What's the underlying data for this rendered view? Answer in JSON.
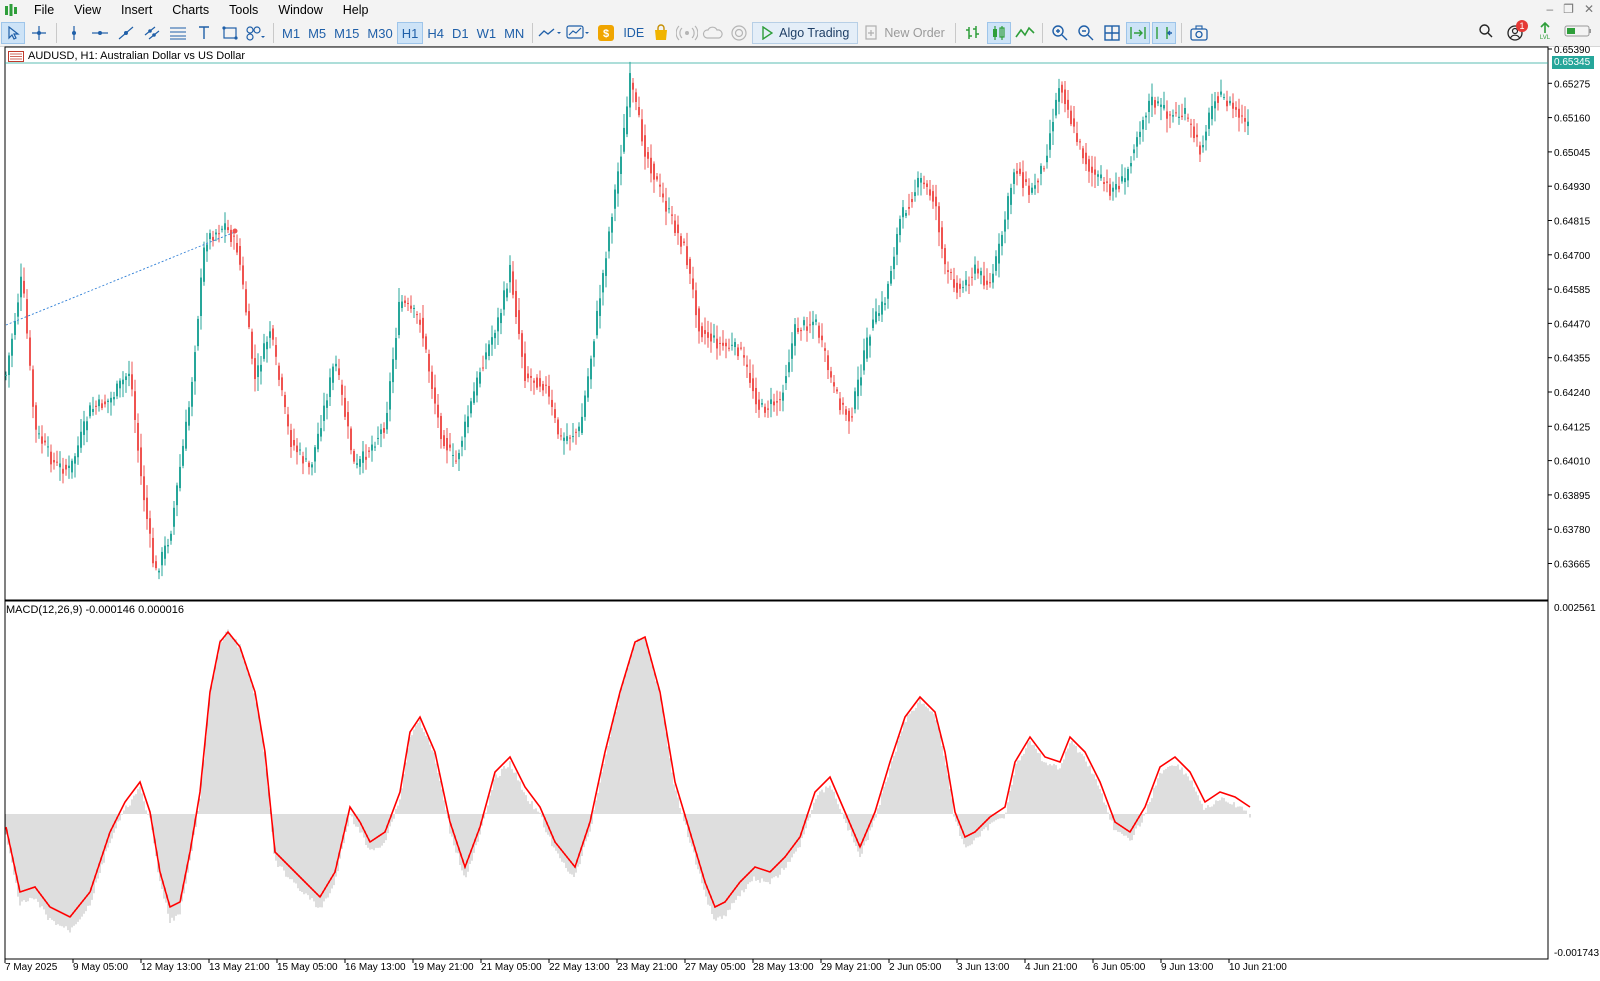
{
  "menu": {
    "items": [
      "File",
      "View",
      "Insert",
      "Charts",
      "Tools",
      "Window",
      "Help"
    ]
  },
  "toolbar": {
    "tool_icons": [
      "cursor-icon",
      "crosshair-icon",
      "vertical-line-icon",
      "horizontal-line-icon",
      "trendline-icon",
      "channel-icon",
      "fibonacci-icon",
      "text-icon",
      "rectangle-icon",
      "shapes-icon"
    ],
    "timeframes": [
      "M1",
      "M5",
      "M15",
      "M30",
      "H1",
      "H4",
      "D1",
      "W1",
      "MN"
    ],
    "active_timeframe": "H1",
    "ide_label": "IDE",
    "algo_trading_label": "Algo Trading",
    "new_order_label": "New Order",
    "notification_count": "1"
  },
  "chart": {
    "symbol_label": "AUDUSD, H1:  Australian Dollar vs US Dollar",
    "current_price": "0.65345",
    "price_axis": [
      "0.65390",
      "0.65275",
      "0.65160",
      "0.65045",
      "0.64930",
      "0.64815",
      "0.64700",
      "0.64585",
      "0.64470",
      "0.64355",
      "0.64240",
      "0.64125",
      "0.64010",
      "0.63895",
      "0.63780",
      "0.63665"
    ],
    "macd_label": "MACD(12,26,9) -0.000146 0.000016",
    "macd_axis_top": "0.002561",
    "macd_axis_bottom": "-0.001743",
    "time_axis": [
      "7 May 2025",
      "9 May 05:00",
      "12 May 13:00",
      "13 May 21:00",
      "15 May 05:00",
      "16 May 13:00",
      "19 May 21:00",
      "21 May 05:00",
      "22 May 13:00",
      "23 May 21:00",
      "27 May 05:00",
      "28 May 13:00",
      "29 May 21:00",
      "2 Jun 05:00",
      "3 Jun 13:00",
      "4 Jun 21:00",
      "6 Jun 05:00",
      "9 Jun 13:00",
      "10 Jun 21:00"
    ],
    "colors": {
      "bull": "#26a69a",
      "bear": "#ef5350",
      "macd_hist": "#bdbdbd",
      "signal": "#ff0000",
      "price_tag": "#26a69a"
    }
  }
}
